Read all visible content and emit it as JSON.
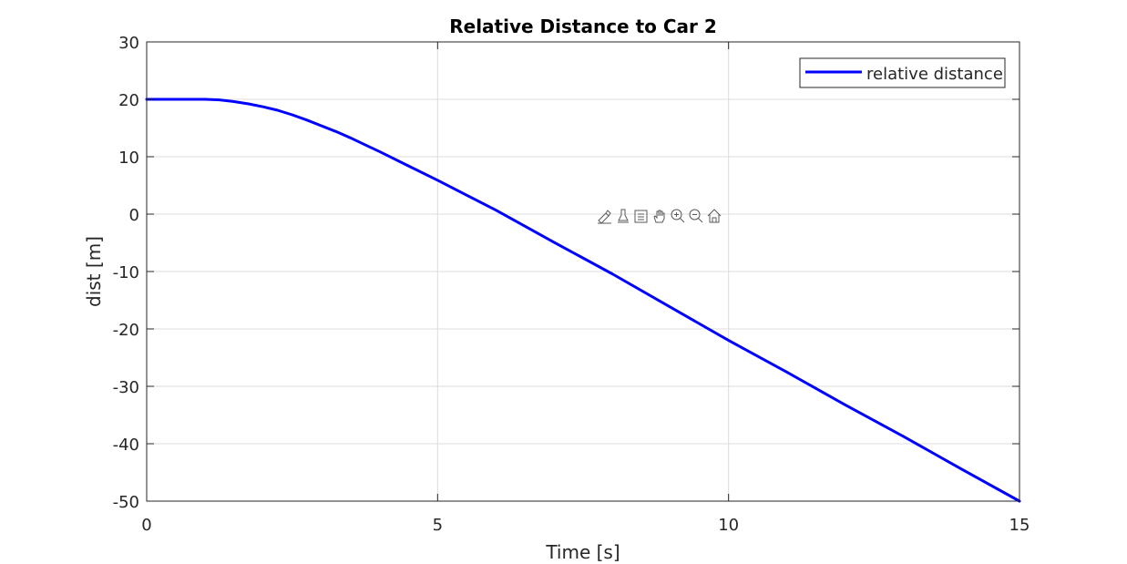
{
  "chart_data": {
    "type": "line",
    "title": "Relative Distance to Car 2",
    "xlabel": "Time [s]",
    "ylabel": "dist [m]",
    "xlim": [
      0,
      15
    ],
    "ylim": [
      -50,
      30
    ],
    "xticks": [
      0,
      5,
      10,
      15
    ],
    "xtick_labels": [
      "0",
      "5",
      "10",
      "15"
    ],
    "yticks": [
      30,
      20,
      10,
      0,
      -10,
      -20,
      -30,
      -40,
      -50
    ],
    "ytick_labels": [
      "30",
      "20",
      "10",
      "0",
      "-10",
      "-20",
      "-30",
      "-40",
      "-50"
    ],
    "grid": true,
    "legend_position": "top-right",
    "series": [
      {
        "name": "relative distance",
        "color": "#0000ff",
        "x": [
          0,
          0.5,
          1.0,
          1.25,
          1.5,
          1.75,
          2.0,
          2.25,
          2.5,
          2.75,
          3.0,
          3.25,
          3.5,
          3.75,
          4.0,
          4.5,
          5.0,
          6.0,
          7.0,
          8.0,
          9.0,
          10.0,
          11.0,
          12.0,
          13.0,
          14.0,
          15.0
        ],
        "y": [
          20,
          20,
          20,
          19.9,
          19.6,
          19.2,
          18.7,
          18.1,
          17.3,
          16.4,
          15.4,
          14.4,
          13.3,
          12.1,
          10.9,
          8.4,
          5.9,
          0.7,
          -4.9,
          -10.4,
          -16.2,
          -22.0,
          -27.5,
          -33.2,
          -38.7,
          -44.4,
          -50.0
        ]
      }
    ]
  },
  "toolbar": {
    "icons": [
      "brush-icon",
      "datatip-icon",
      "legend-icon",
      "pan-icon",
      "zoom-in-icon",
      "zoom-out-icon",
      "home-icon"
    ]
  }
}
